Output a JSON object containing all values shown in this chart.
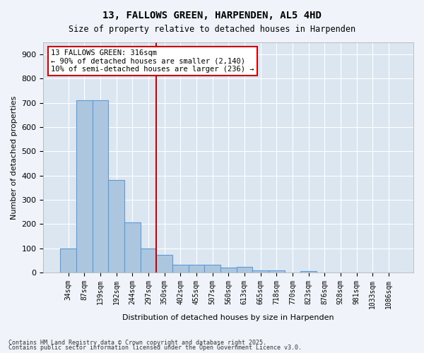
{
  "title1": "13, FALLOWS GREEN, HARPENDEN, AL5 4HD",
  "title2": "Size of property relative to detached houses in Harpenden",
  "xlabel": "Distribution of detached houses by size in Harpenden",
  "ylabel": "Number of detached properties",
  "categories": [
    "34sqm",
    "87sqm",
    "139sqm",
    "192sqm",
    "244sqm",
    "297sqm",
    "350sqm",
    "402sqm",
    "455sqm",
    "507sqm",
    "560sqm",
    "613sqm",
    "665sqm",
    "718sqm",
    "770sqm",
    "823sqm",
    "876sqm",
    "928sqm",
    "981sqm",
    "1033sqm",
    "1086sqm"
  ],
  "values": [
    100,
    710,
    710,
    380,
    207,
    100,
    72,
    32,
    33,
    32,
    20,
    22,
    8,
    8,
    0,
    5,
    0,
    0,
    0,
    0,
    0
  ],
  "bar_color": "#adc6e0",
  "bar_edge_color": "#5b9bd5",
  "vline_position": 5.5,
  "vline_color": "#cc0000",
  "annotation_text": "13 FALLOWS GREEN: 316sqm\n← 90% of detached houses are smaller (2,140)\n10% of semi-detached houses are larger (236) →",
  "annotation_box_color": "#cc0000",
  "bg_color": "#dce6f1",
  "yticks": [
    0,
    100,
    200,
    300,
    400,
    500,
    600,
    700,
    800,
    900
  ],
  "ylim": [
    0,
    950
  ],
  "footer1": "Contains HM Land Registry data © Crown copyright and database right 2025.",
  "footer2": "Contains public sector information licensed under the Open Government Licence v3.0."
}
